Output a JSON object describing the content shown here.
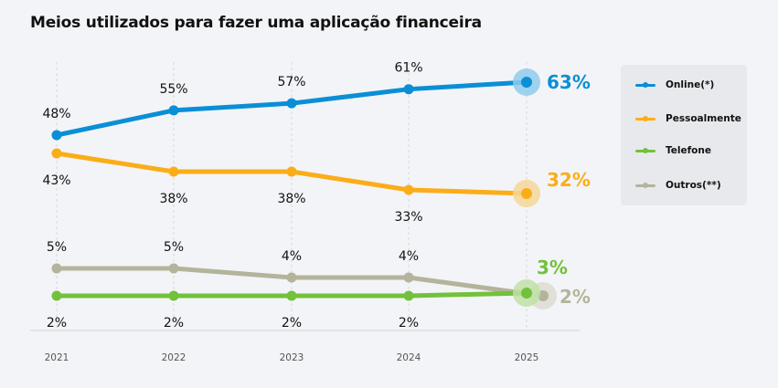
{
  "chart_data": {
    "type": "line",
    "title": "Meios utilizados para fazer uma aplicação financeira",
    "xlabel": "",
    "ylabel": "",
    "x": [
      "2021",
      "2022",
      "2023",
      "2024",
      "2025"
    ],
    "unit": "%",
    "grid": "vertical-dashed",
    "legend_position": "right",
    "series": [
      {
        "name": "Online(*)",
        "color": "#0a8fd6",
        "halo": "#8fcbec",
        "values": [
          48,
          55,
          57,
          61,
          63
        ]
      },
      {
        "name": "Pessoalmente",
        "color": "#fbad18",
        "halo": "#f5d699",
        "values": [
          43,
          38,
          38,
          33,
          32
        ]
      },
      {
        "name": "Telefone",
        "color": "#72c13b",
        "halo": "#bfe0a6",
        "values": [
          2,
          2,
          2,
          2,
          3
        ]
      },
      {
        "name": "Outros(**)",
        "color": "#b3b49b",
        "halo": "#dcdcd3",
        "values": [
          5,
          5,
          4,
          4,
          2
        ]
      }
    ],
    "labels": [
      [
        "48%",
        "55%",
        "57%",
        "61%",
        "63%"
      ],
      [
        "43%",
        "38%",
        "38%",
        "33%",
        "32%"
      ],
      [
        "2%",
        "2%",
        "2%",
        "2%",
        "3%"
      ],
      [
        "5%",
        "5%",
        "4%",
        "4%",
        "2%"
      ]
    ]
  }
}
